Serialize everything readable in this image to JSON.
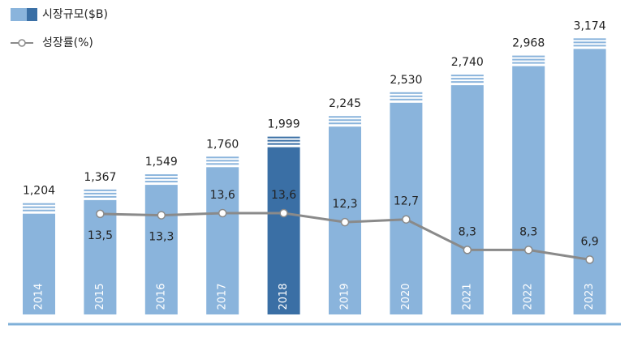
{
  "chart_data": {
    "type": "bar",
    "categories": [
      "2014",
      "2015",
      "2016",
      "2017",
      "2018",
      "2019",
      "2020",
      "2021",
      "2022",
      "2023"
    ],
    "series": [
      {
        "name": "시장규모($B)",
        "type": "bar",
        "color": "#8ab4dc",
        "colors": [
          "#8ab4dc",
          "#8ab4dc",
          "#8ab4dc",
          "#8ab4dc",
          "#3a6fa5",
          "#8ab4dc",
          "#8ab4dc",
          "#8ab4dc",
          "#8ab4dc",
          "#8ab4dc"
        ],
        "values": [
          1204,
          1367,
          1549,
          1760,
          1999,
          2245,
          2530,
          2740,
          2968,
          3174
        ],
        "value_labels": [
          "1,204",
          "1,367",
          "1,549",
          "1,760",
          "1,999",
          "2,245",
          "2,530",
          "2,740",
          "2,968",
          "3,174"
        ]
      },
      {
        "name": "성장률(%)",
        "type": "line",
        "axis": "y2",
        "color": "#8a8a8a",
        "values": [
          null,
          13.5,
          13.3,
          13.6,
          13.6,
          12.3,
          12.7,
          8.3,
          8.3,
          6.9
        ],
        "value_labels": [
          null,
          "13,5",
          "13,3",
          "13,6",
          "13,6",
          "12,3",
          "12,7",
          "8,3",
          "8,3",
          "6,9"
        ]
      }
    ],
    "ylim": [
      0,
      3400
    ],
    "y2lim": [
      -1,
      40
    ]
  }
}
